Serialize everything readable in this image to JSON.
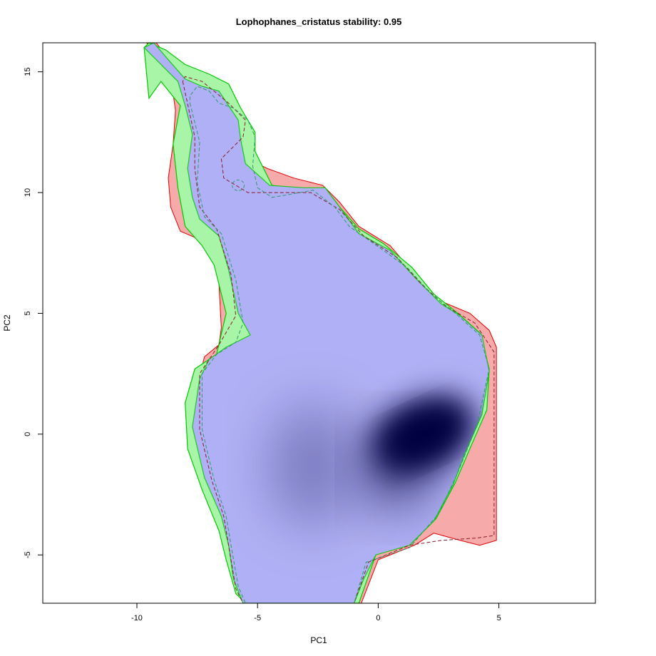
{
  "chart_data": {
    "type": "heatmap",
    "title": "Lophophanes_cristatus stability: 0.95",
    "xlabel": "PC1",
    "ylabel": "PC2",
    "xlim": [
      -13.9,
      9.0
    ],
    "ylim": [
      -7.0,
      16.2
    ],
    "x_ticks": [
      "-10",
      "-5",
      "0",
      "5"
    ],
    "y_ticks": [
      "-5",
      "0",
      "5",
      "10",
      "15"
    ],
    "grid": false,
    "legend": "none",
    "colors": {
      "stable_fill": "#b0b0f6",
      "density_high": "#06063f",
      "red_only_fill": "#f7aaaa",
      "green_only_fill": "#a8f5a8",
      "red_outline": "#e00000",
      "green_outline": "#00c800",
      "contour_red": "#8b1a2a",
      "contour_green": "#2e9a6a"
    },
    "regions": {
      "stable_area": [
        [
          -9.7,
          16.0
        ],
        [
          -9.2,
          15.5
        ],
        [
          -8.7,
          15.0
        ],
        [
          -8.3,
          14.6
        ],
        [
          -8.0,
          13.6
        ],
        [
          -7.7,
          12.4
        ],
        [
          -7.9,
          11.0
        ],
        [
          -7.7,
          9.8
        ],
        [
          -7.4,
          8.9
        ],
        [
          -6.6,
          8.2
        ],
        [
          -6.2,
          6.8
        ],
        [
          -5.8,
          5.0
        ],
        [
          -5.3,
          4.1
        ],
        [
          -6.3,
          3.6
        ],
        [
          -7.0,
          3.1
        ],
        [
          -7.4,
          2.3
        ],
        [
          -7.7,
          0.3
        ],
        [
          -7.2,
          -1.8
        ],
        [
          -6.5,
          -3.4
        ],
        [
          -6.2,
          -4.6
        ],
        [
          -6.0,
          -6.0
        ],
        [
          -5.6,
          -7.0
        ],
        [
          -1.0,
          -7.0
        ],
        [
          -0.6,
          -6.0
        ],
        [
          -0.1,
          -5.0
        ],
        [
          1.3,
          -4.6
        ],
        [
          2.3,
          -3.6
        ],
        [
          3.1,
          -2.1
        ],
        [
          3.6,
          -0.8
        ],
        [
          4.3,
          0.8
        ],
        [
          4.6,
          2.6
        ],
        [
          4.3,
          4.1
        ],
        [
          3.4,
          4.9
        ],
        [
          2.6,
          5.4
        ],
        [
          1.6,
          6.4
        ],
        [
          0.5,
          7.6
        ],
        [
          -0.8,
          8.3
        ],
        [
          -1.6,
          9.4
        ],
        [
          -2.2,
          10.2
        ],
        [
          -3.1,
          10.2
        ],
        [
          -4.5,
          10.3
        ],
        [
          -5.5,
          11.2
        ],
        [
          -5.7,
          12.2
        ],
        [
          -5.8,
          13.0
        ],
        [
          -6.6,
          14.2
        ],
        [
          -7.3,
          14.4
        ],
        [
          -8.0,
          14.7
        ],
        [
          -8.7,
          15.5
        ],
        [
          -9.3,
          16.2
        ]
      ],
      "red_region": [
        [
          -9.6,
          16.2
        ],
        [
          -8.6,
          14.8
        ],
        [
          -8.4,
          13.4
        ],
        [
          -8.5,
          12.0
        ],
        [
          -8.7,
          10.6
        ],
        [
          -8.6,
          9.4
        ],
        [
          -8.2,
          8.4
        ],
        [
          -7.5,
          8.1
        ],
        [
          -6.8,
          7.6
        ],
        [
          -6.6,
          6.2
        ],
        [
          -6.5,
          4.4
        ],
        [
          -6.6,
          3.7
        ],
        [
          -7.2,
          3.2
        ],
        [
          -7.5,
          2.0
        ],
        [
          -7.6,
          0.6
        ],
        [
          -7.1,
          -1.6
        ],
        [
          -6.4,
          -3.4
        ],
        [
          -6.1,
          -5.0
        ],
        [
          -5.7,
          -6.6
        ],
        [
          -5.5,
          -7.0
        ],
        [
          -0.7,
          -7.0
        ],
        [
          0.0,
          -5.2
        ],
        [
          1.5,
          -4.6
        ],
        [
          2.3,
          -4.1
        ],
        [
          3.4,
          -4.4
        ],
        [
          4.2,
          -4.6
        ],
        [
          4.9,
          -4.4
        ],
        [
          4.9,
          3.6
        ],
        [
          4.6,
          4.3
        ],
        [
          3.8,
          5.0
        ],
        [
          2.6,
          5.5
        ],
        [
          1.6,
          6.5
        ],
        [
          0.5,
          7.8
        ],
        [
          -0.8,
          8.6
        ],
        [
          -1.6,
          9.6
        ],
        [
          -2.3,
          10.3
        ],
        [
          -3.5,
          10.6
        ],
        [
          -4.6,
          11.0
        ],
        [
          -5.6,
          11.5
        ],
        [
          -6.0,
          12.3
        ],
        [
          -6.5,
          13.2
        ],
        [
          -7.4,
          14.8
        ],
        [
          -8.5,
          15.3
        ],
        [
          -9.2,
          16.2
        ]
      ],
      "green_region": [
        [
          -9.7,
          16.0
        ],
        [
          -9.5,
          13.9
        ],
        [
          -9.0,
          14.6
        ],
        [
          -8.2,
          13.6
        ],
        [
          -8.5,
          12.0
        ],
        [
          -8.3,
          10.2
        ],
        [
          -8.0,
          8.6
        ],
        [
          -7.3,
          7.8
        ],
        [
          -6.8,
          7.0
        ],
        [
          -6.3,
          5.0
        ],
        [
          -6.7,
          3.3
        ],
        [
          -7.6,
          2.7
        ],
        [
          -8.0,
          1.3
        ],
        [
          -7.9,
          -0.6
        ],
        [
          -7.3,
          -2.3
        ],
        [
          -6.6,
          -4.0
        ],
        [
          -6.3,
          -5.2
        ],
        [
          -5.9,
          -6.6
        ],
        [
          -5.5,
          -7.0
        ],
        [
          -0.8,
          -7.0
        ],
        [
          -0.1,
          -5.0
        ],
        [
          1.4,
          -4.5
        ],
        [
          2.4,
          -3.5
        ],
        [
          3.2,
          -2.0
        ],
        [
          3.8,
          -0.6
        ],
        [
          4.5,
          1.0
        ],
        [
          4.6,
          2.7
        ],
        [
          4.2,
          4.2
        ],
        [
          3.3,
          5.0
        ],
        [
          2.3,
          5.8
        ],
        [
          1.4,
          6.9
        ],
        [
          0.2,
          7.9
        ],
        [
          -0.8,
          8.5
        ],
        [
          -1.6,
          9.4
        ],
        [
          -2.2,
          10.2
        ],
        [
          -3.3,
          10.1
        ],
        [
          -4.4,
          10.3
        ],
        [
          -5.1,
          11.7
        ],
        [
          -5.1,
          12.5
        ],
        [
          -5.7,
          13.5
        ],
        [
          -6.2,
          14.5
        ],
        [
          -7.0,
          14.9
        ],
        [
          -8.0,
          15.3
        ],
        [
          -8.8,
          15.9
        ],
        [
          -9.5,
          16.2
        ]
      ],
      "density_cores": [
        {
          "x": 1.9,
          "y": 0.0,
          "rx": 2.2,
          "ry": 1.4,
          "rotate_deg": 25,
          "strength": 1.0
        },
        {
          "x": 0.8,
          "y": -1.4,
          "rx": 1.3,
          "ry": 1.6,
          "rotate_deg": 0,
          "strength": 0.7
        },
        {
          "x": -2.7,
          "y": -1.3,
          "rx": 1.8,
          "ry": 2.5,
          "rotate_deg": 0,
          "strength": 0.3
        }
      ],
      "contour_red": [
        [
          -8.1,
          14.6
        ],
        [
          -7.6,
          12.3
        ],
        [
          -7.6,
          11.0
        ],
        [
          -7.4,
          9.4
        ],
        [
          -6.7,
          8.5
        ],
        [
          -6.1,
          6.6
        ],
        [
          -5.9,
          4.9
        ],
        [
          -6.6,
          3.7
        ],
        [
          -7.4,
          2.5
        ],
        [
          -7.4,
          0.2
        ],
        [
          -6.9,
          -1.9
        ],
        [
          -6.4,
          -3.4
        ],
        [
          -6.2,
          -4.6
        ],
        [
          -5.9,
          -6.4
        ],
        [
          -5.6,
          -7.0
        ],
        [
          -1.0,
          -7.0
        ],
        [
          -0.4,
          -5.3
        ],
        [
          1.3,
          -4.6
        ],
        [
          2.6,
          -4.4
        ],
        [
          4.1,
          -4.3
        ],
        [
          4.8,
          -4.2
        ],
        [
          4.8,
          3.4
        ],
        [
          4.0,
          4.6
        ],
        [
          2.8,
          5.3
        ],
        [
          1.8,
          6.2
        ],
        [
          0.8,
          7.3
        ],
        [
          -0.6,
          8.2
        ],
        [
          -1.6,
          9.3
        ],
        [
          -2.8,
          10.0
        ],
        [
          -4.0,
          10.0
        ],
        [
          -5.4,
          10.0
        ],
        [
          -6.4,
          10.6
        ],
        [
          -6.5,
          11.4
        ],
        [
          -5.6,
          12.3
        ],
        [
          -5.5,
          13.0
        ],
        [
          -6.2,
          13.7
        ],
        [
          -6.8,
          14.2
        ],
        [
          -7.3,
          14.6
        ],
        [
          -8.0,
          14.8
        ]
      ],
      "contour_green": [
        [
          -7.8,
          13.7
        ],
        [
          -7.4,
          12.1
        ],
        [
          -7.5,
          10.4
        ],
        [
          -7.2,
          9.0
        ],
        [
          -6.5,
          8.3
        ],
        [
          -5.9,
          6.4
        ],
        [
          -5.6,
          4.6
        ],
        [
          -5.9,
          3.8
        ],
        [
          -6.7,
          3.3
        ],
        [
          -7.3,
          2.5
        ],
        [
          -7.3,
          0.2
        ],
        [
          -6.8,
          -1.9
        ],
        [
          -6.3,
          -3.4
        ],
        [
          -6.1,
          -4.6
        ],
        [
          -5.8,
          -6.3
        ],
        [
          -5.5,
          -7.0
        ],
        [
          -1.0,
          -7.0
        ],
        [
          -0.5,
          -5.3
        ],
        [
          1.3,
          -4.7
        ],
        [
          2.5,
          -3.3
        ],
        [
          3.3,
          -1.6
        ],
        [
          4.1,
          0.4
        ],
        [
          4.6,
          2.7
        ],
        [
          4.2,
          4.1
        ],
        [
          3.2,
          5.0
        ],
        [
          2.2,
          5.8
        ],
        [
          1.2,
          6.9
        ],
        [
          -0.2,
          7.9
        ],
        [
          -1.2,
          8.6
        ],
        [
          -1.8,
          9.4
        ],
        [
          -2.7,
          10.1
        ],
        [
          -3.8,
          9.9
        ],
        [
          -4.4,
          9.8
        ],
        [
          -5.0,
          10.2
        ],
        [
          -5.2,
          11.1
        ],
        [
          -5.1,
          12.3
        ],
        [
          -5.4,
          13.0
        ],
        [
          -6.0,
          13.5
        ],
        [
          -6.6,
          13.7
        ],
        [
          -7.0,
          14.2
        ],
        [
          -7.5,
          14.4
        ],
        [
          -7.8,
          14.0
        ]
      ],
      "contour_small_loop": {
        "x": -5.8,
        "y": 10.3,
        "rx": 0.25,
        "ry": 0.22
      }
    }
  }
}
